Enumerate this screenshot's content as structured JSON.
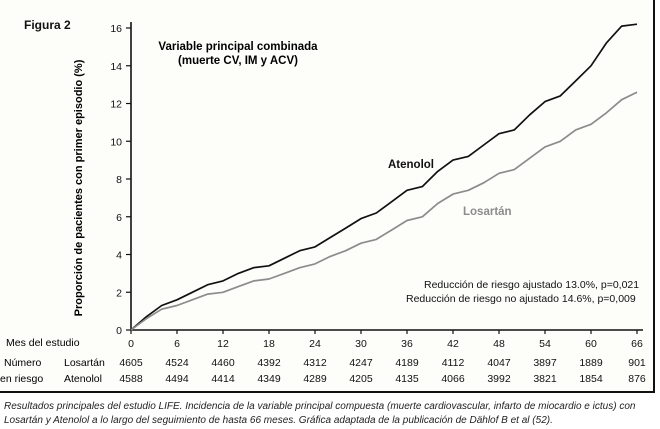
{
  "figure_label": "Figura 2",
  "caption": "Resultados principales del estudio LIFE. Incidencia de la variable principal compuesta (muerte cardiovascular, infarto de miocardio e ictus) con Losartán y Atenolol a lo largo del seguimiento de hasta 66 meses. Gráfica adaptada de la publicación de Dählof B et al (52).",
  "chart_data": {
    "type": "line",
    "title": "Variable principal combinada",
    "subtitle": "(muerte CV, IM y ACV)",
    "xlabel": "Mes del estudio",
    "ylabel": "Proporción de pacientes con primer episodio (%)",
    "xlim": [
      0,
      66
    ],
    "ylim": [
      0,
      16
    ],
    "x_ticks": [
      0,
      6,
      12,
      18,
      24,
      30,
      36,
      42,
      48,
      54,
      60,
      66
    ],
    "y_ticks": [
      0,
      2,
      4,
      6,
      8,
      10,
      12,
      14,
      16
    ],
    "grid": false,
    "series": [
      {
        "name": "Atenolol",
        "color": "#111111",
        "x": [
          0,
          2,
          4,
          6,
          8,
          10,
          12,
          14,
          16,
          18,
          20,
          22,
          24,
          26,
          28,
          30,
          32,
          34,
          36,
          38,
          40,
          42,
          44,
          46,
          48,
          50,
          52,
          54,
          56,
          58,
          60,
          62,
          64,
          66
        ],
        "y": [
          0,
          0.7,
          1.3,
          1.6,
          2.0,
          2.4,
          2.6,
          3.0,
          3.3,
          3.4,
          3.8,
          4.2,
          4.4,
          4.9,
          5.4,
          5.9,
          6.2,
          6.8,
          7.4,
          7.6,
          8.4,
          9.0,
          9.2,
          9.8,
          10.4,
          10.6,
          11.4,
          12.1,
          12.4,
          13.2,
          14.0,
          15.2,
          16.1,
          16.2
        ]
      },
      {
        "name": "Losartán",
        "color": "#8c8c8c",
        "x": [
          0,
          2,
          4,
          6,
          8,
          10,
          12,
          14,
          16,
          18,
          20,
          22,
          24,
          26,
          28,
          30,
          32,
          34,
          36,
          38,
          40,
          42,
          44,
          46,
          48,
          50,
          52,
          54,
          56,
          58,
          60,
          62,
          64,
          66
        ],
        "y": [
          0,
          0.6,
          1.1,
          1.3,
          1.6,
          1.9,
          2.0,
          2.3,
          2.6,
          2.7,
          3.0,
          3.3,
          3.5,
          3.9,
          4.2,
          4.6,
          4.8,
          5.3,
          5.8,
          6.0,
          6.7,
          7.2,
          7.4,
          7.8,
          8.3,
          8.5,
          9.1,
          9.7,
          10.0,
          10.6,
          10.9,
          11.5,
          12.2,
          12.6
        ]
      }
    ],
    "annotations": [
      "Reducción de riesgo ajustado 13.0%, p=0,021",
      "Reducción de riesgo no ajustado 14.6%, p=0,009"
    ],
    "at_risk": {
      "label_line1": "Número",
      "label_line2": "en riesgo",
      "rows": [
        {
          "name": "Losartán",
          "values": [
            4605,
            4524,
            4460,
            4392,
            4312,
            4247,
            4189,
            4112,
            4047,
            3897,
            1889,
            901
          ]
        },
        {
          "name": "Atenolol",
          "values": [
            4588,
            4494,
            4414,
            4349,
            4289,
            4205,
            4135,
            4066,
            3992,
            3821,
            1854,
            876
          ]
        }
      ]
    }
  }
}
